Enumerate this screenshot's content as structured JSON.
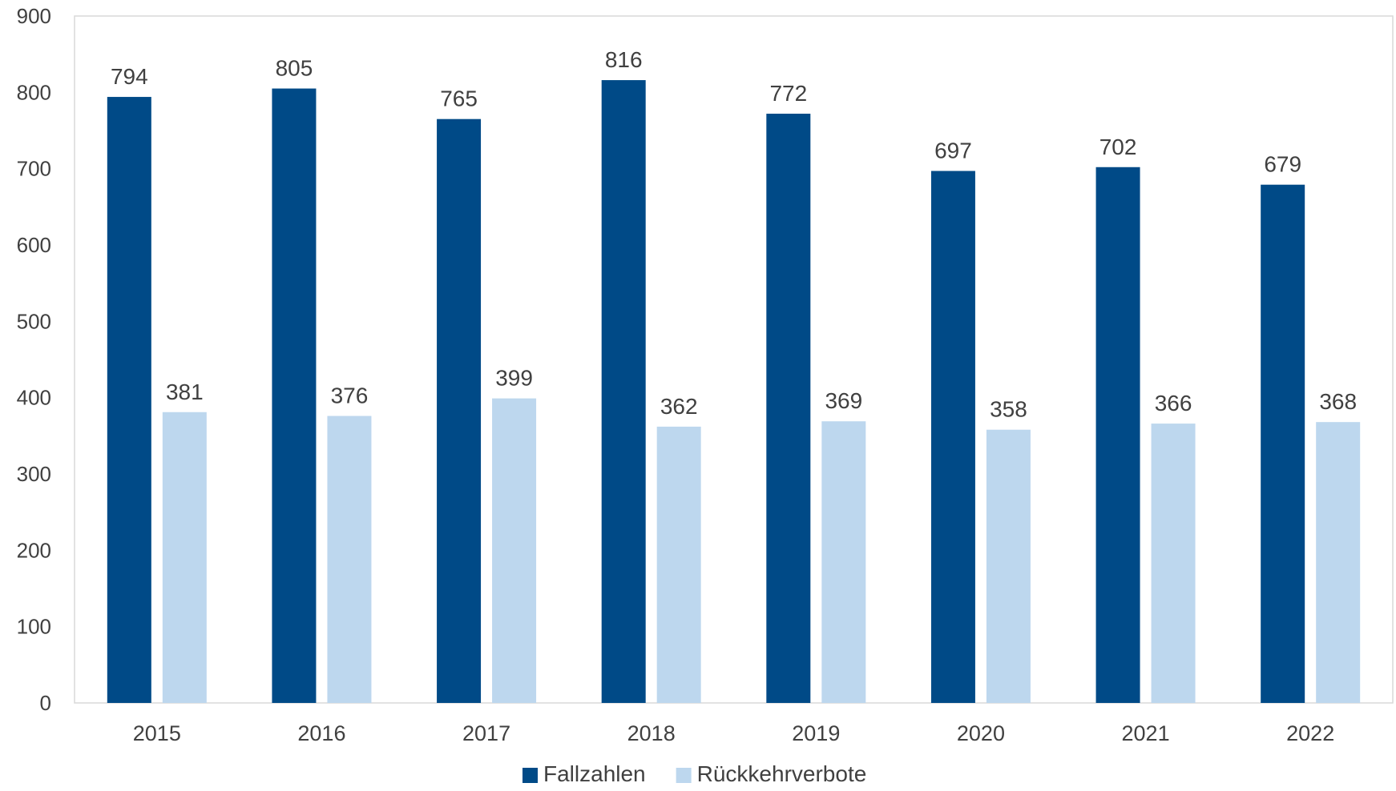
{
  "chart_data": {
    "type": "bar",
    "categories": [
      "2015",
      "2016",
      "2017",
      "2018",
      "2019",
      "2020",
      "2021",
      "2022"
    ],
    "series": [
      {
        "name": "Fallzahlen",
        "color": "#004a87",
        "values": [
          794,
          805,
          765,
          816,
          772,
          697,
          702,
          679
        ]
      },
      {
        "name": "Rückkehrverbote",
        "color": "#bdd7ee",
        "values": [
          381,
          376,
          399,
          362,
          369,
          358,
          366,
          368
        ]
      }
    ],
    "ylim": [
      0,
      900
    ],
    "yticks": [
      0,
      100,
      200,
      300,
      400,
      500,
      600,
      700,
      800,
      900
    ],
    "grid": false,
    "legend_position": "bottom",
    "data_labels": true
  }
}
